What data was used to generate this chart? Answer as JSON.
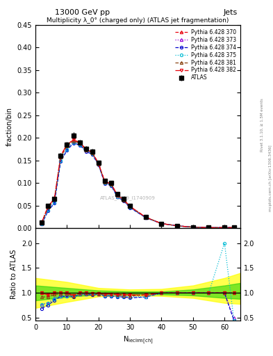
{
  "title_top": "13000 GeV pp",
  "title_right": "Jets",
  "main_title": "Multiplicity λ_0° (charged only) (ATLAS jet fragmentation)",
  "xlabel": "N$_{\\mathrm{leclrm[ch]}}$",
  "ylabel_main": "fraction/bin",
  "ylabel_ratio": "Ratio to ATLAS",
  "right_label": "mcplots.cern.ch [arXiv:1306.3436]",
  "right_label2": "Rivet 3.1.10, ≥ 1.5M events",
  "watermark": "ATLAS_2019_I1740909",
  "atlas_x": [
    2,
    4,
    6,
    8,
    10,
    12,
    14,
    16,
    18,
    20,
    22,
    24,
    26,
    28,
    30,
    35,
    40,
    45,
    50,
    55,
    60,
    63
  ],
  "atlas_y": [
    0.013,
    0.05,
    0.065,
    0.16,
    0.185,
    0.205,
    0.19,
    0.175,
    0.17,
    0.145,
    0.105,
    0.1,
    0.075,
    0.065,
    0.05,
    0.025,
    0.01,
    0.005,
    0.002,
    0.001,
    0.001,
    0.001
  ],
  "atlas_yerr": [
    0.001,
    0.003,
    0.004,
    0.006,
    0.006,
    0.007,
    0.006,
    0.006,
    0.006,
    0.005,
    0.004,
    0.004,
    0.003,
    0.003,
    0.002,
    0.001,
    0.001,
    0.0005,
    0.0002,
    0.0001,
    0.0001,
    0.0001
  ],
  "series": [
    {
      "label": "Pythia 6.428 370",
      "color": "#e8000b",
      "marker": "^",
      "linestyle": "--",
      "x": [
        2,
        4,
        6,
        8,
        10,
        12,
        14,
        16,
        18,
        20,
        22,
        24,
        26,
        28,
        30,
        35,
        40,
        45,
        50,
        55,
        60,
        63
      ],
      "y": [
        0.013,
        0.048,
        0.065,
        0.16,
        0.185,
        0.195,
        0.19,
        0.175,
        0.168,
        0.143,
        0.103,
        0.098,
        0.073,
        0.063,
        0.048,
        0.024,
        0.01,
        0.005,
        0.002,
        0.001,
        0.001,
        0.001
      ],
      "ratio": [
        1.0,
        0.96,
        1.0,
        1.0,
        1.0,
        0.95,
        1.0,
        1.0,
        0.99,
        0.99,
        0.98,
        0.98,
        0.97,
        0.97,
        0.96,
        0.96,
        1.0,
        1.0,
        1.0,
        1.0,
        1.0,
        1.0
      ]
    },
    {
      "label": "Pythia 6.428 373",
      "color": "#9400d3",
      "marker": "^",
      "linestyle": ":",
      "x": [
        2,
        4,
        6,
        8,
        10,
        12,
        14,
        16,
        18,
        20,
        22,
        24,
        26,
        28,
        30,
        35,
        40,
        45,
        50,
        55,
        60,
        63
      ],
      "y": [
        0.01,
        0.04,
        0.058,
        0.15,
        0.175,
        0.19,
        0.185,
        0.172,
        0.165,
        0.141,
        0.1,
        0.095,
        0.07,
        0.061,
        0.046,
        0.023,
        0.01,
        0.005,
        0.002,
        0.001,
        0.001,
        0.001
      ],
      "ratio": [
        0.77,
        0.8,
        0.89,
        0.94,
        0.95,
        0.93,
        0.97,
        0.98,
        0.97,
        0.97,
        0.95,
        0.95,
        0.93,
        0.94,
        0.92,
        0.92,
        1.0,
        1.0,
        1.0,
        1.0,
        1.0,
        0.5
      ]
    },
    {
      "label": "Pythia 6.428 374",
      "color": "#0000cd",
      "marker": "o",
      "linestyle": "--",
      "x": [
        2,
        4,
        6,
        8,
        10,
        12,
        14,
        16,
        18,
        20,
        22,
        24,
        26,
        28,
        30,
        35,
        40,
        45,
        50,
        55,
        60,
        63
      ],
      "y": [
        0.009,
        0.038,
        0.055,
        0.148,
        0.172,
        0.188,
        0.184,
        0.17,
        0.163,
        0.14,
        0.099,
        0.094,
        0.069,
        0.06,
        0.045,
        0.023,
        0.01,
        0.005,
        0.002,
        0.001,
        0.001,
        0.001
      ],
      "ratio": [
        0.69,
        0.76,
        0.85,
        0.93,
        0.93,
        0.92,
        0.97,
        0.97,
        0.96,
        0.97,
        0.94,
        0.94,
        0.92,
        0.92,
        0.9,
        0.92,
        1.0,
        1.0,
        1.0,
        1.0,
        1.0,
        0.45
      ]
    },
    {
      "label": "Pythia 6.428 375",
      "color": "#00bcd4",
      "marker": "o",
      "linestyle": ":",
      "x": [
        2,
        4,
        6,
        8,
        10,
        12,
        14,
        16,
        18,
        20,
        22,
        24,
        26,
        28,
        30,
        35,
        40,
        45,
        50,
        55,
        60,
        63
      ],
      "y": [
        0.01,
        0.04,
        0.057,
        0.15,
        0.174,
        0.19,
        0.185,
        0.172,
        0.165,
        0.141,
        0.1,
        0.095,
        0.07,
        0.061,
        0.046,
        0.023,
        0.01,
        0.005,
        0.002,
        0.001,
        0.001,
        0.001
      ],
      "ratio": [
        0.77,
        0.8,
        0.88,
        0.94,
        0.94,
        0.93,
        0.97,
        0.98,
        0.97,
        0.97,
        0.95,
        0.95,
        0.93,
        0.94,
        0.92,
        0.92,
        1.0,
        1.0,
        1.0,
        1.0,
        2.0,
        0.45
      ]
    },
    {
      "label": "Pythia 6.428 381",
      "color": "#8B4513",
      "marker": "^",
      "linestyle": "--",
      "x": [
        2,
        4,
        6,
        8,
        10,
        12,
        14,
        16,
        18,
        20,
        22,
        24,
        26,
        28,
        30,
        35,
        40,
        45,
        50,
        55,
        60,
        63
      ],
      "y": [
        0.012,
        0.046,
        0.063,
        0.157,
        0.182,
        0.193,
        0.188,
        0.173,
        0.167,
        0.142,
        0.102,
        0.097,
        0.072,
        0.062,
        0.047,
        0.024,
        0.01,
        0.005,
        0.002,
        0.001,
        0.001,
        0.001
      ],
      "ratio": [
        0.92,
        0.92,
        0.97,
        0.98,
        0.98,
        0.94,
        0.99,
        0.99,
        0.98,
        0.98,
        0.97,
        0.97,
        0.96,
        0.95,
        0.94,
        0.96,
        1.0,
        1.0,
        1.0,
        1.0,
        1.0,
        1.0
      ]
    },
    {
      "label": "Pythia 6.428 382",
      "color": "#e8000b",
      "marker": "v",
      "linestyle": "-.",
      "x": [
        2,
        4,
        6,
        8,
        10,
        12,
        14,
        16,
        18,
        20,
        22,
        24,
        26,
        28,
        30,
        35,
        40,
        45,
        50,
        55,
        60,
        63
      ],
      "y": [
        0.013,
        0.048,
        0.065,
        0.16,
        0.185,
        0.195,
        0.19,
        0.175,
        0.168,
        0.143,
        0.103,
        0.098,
        0.073,
        0.063,
        0.048,
        0.024,
        0.01,
        0.005,
        0.002,
        0.001,
        0.001,
        0.001
      ],
      "ratio": [
        1.0,
        0.96,
        1.0,
        1.0,
        1.0,
        0.95,
        1.0,
        1.0,
        0.99,
        0.99,
        0.98,
        0.98,
        0.97,
        0.97,
        0.96,
        0.96,
        1.0,
        1.0,
        1.0,
        1.0,
        1.0,
        1.0
      ]
    }
  ],
  "green_band_x": [
    0,
    10,
    20,
    30,
    40,
    50,
    60,
    65
  ],
  "green_band_low": [
    0.85,
    0.92,
    0.97,
    0.98,
    0.97,
    0.95,
    0.9,
    0.88
  ],
  "green_band_high": [
    1.15,
    1.1,
    1.05,
    1.03,
    1.03,
    1.07,
    1.15,
    1.2
  ],
  "yellow_band_low": [
    0.7,
    0.82,
    0.93,
    0.95,
    0.94,
    0.9,
    0.8,
    0.78
  ],
  "yellow_band_high": [
    1.3,
    1.22,
    1.1,
    1.07,
    1.08,
    1.15,
    1.3,
    1.4
  ],
  "xlim": [
    0,
    65
  ],
  "ylim_main": [
    0,
    0.45
  ],
  "ylim_ratio": [
    0.45,
    2.3
  ],
  "yticks_main": [
    0.0,
    0.05,
    0.1,
    0.15,
    0.2,
    0.25,
    0.3,
    0.35,
    0.4,
    0.45
  ],
  "yticks_ratio": [
    0.5,
    1.0,
    1.5,
    2.0
  ],
  "xticks": [
    0,
    10,
    20,
    30,
    40,
    50,
    60
  ]
}
